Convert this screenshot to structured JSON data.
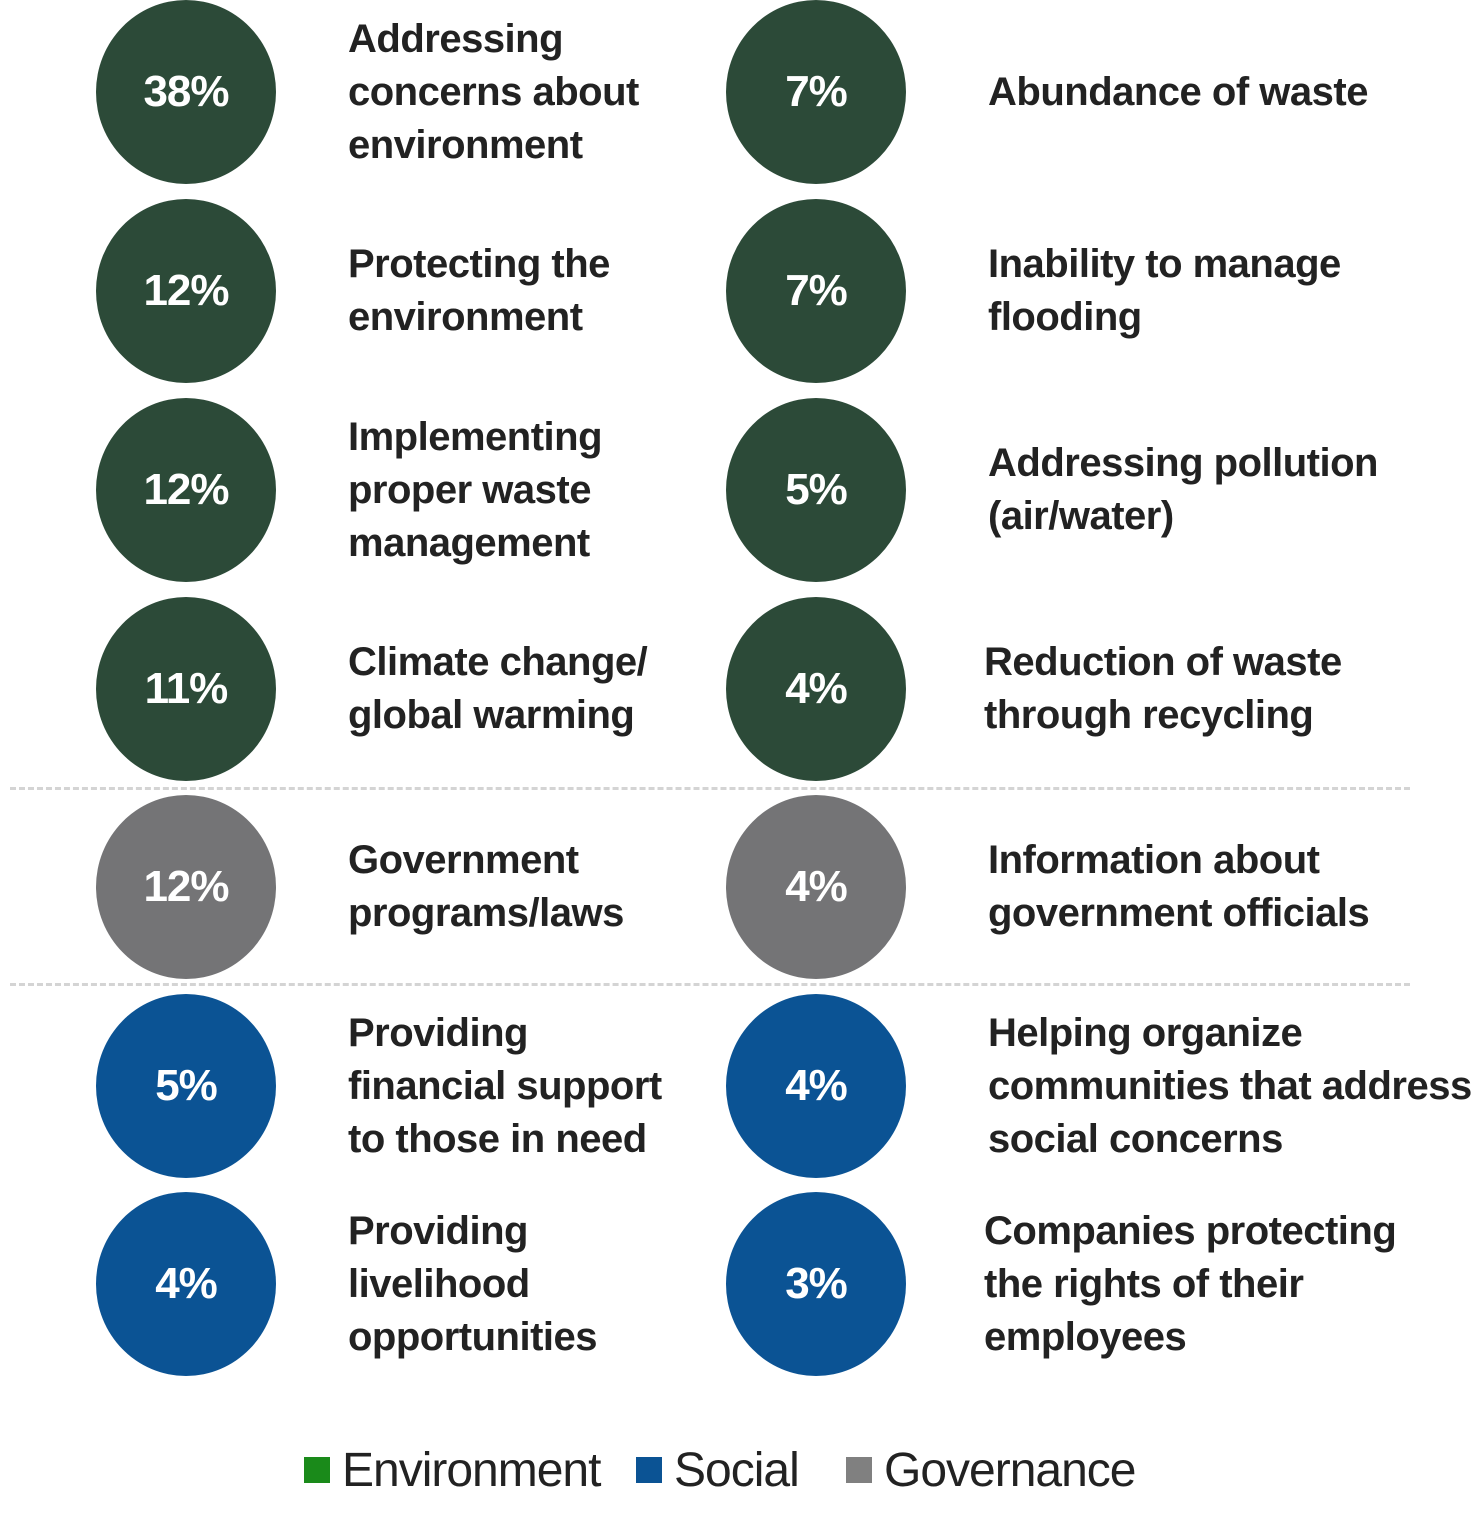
{
  "chart_data": {
    "type": "bubble-list",
    "colors": {
      "environment_bubble": "#2c4a38",
      "governance_bubble": "#747476",
      "social_bubble": "#0b5394",
      "environment_legend": "#1a8a1a",
      "social_legend": "#0b5394",
      "governance_legend": "#808080"
    },
    "legend": [
      {
        "label": "Environment",
        "category": "environment"
      },
      {
        "label": "Social",
        "category": "social"
      },
      {
        "label": "Governance",
        "category": "governance"
      }
    ],
    "items": [
      {
        "value": "38%",
        "label": "Addressing\nconcerns about\nenvironment",
        "category": "environment",
        "column": 0,
        "row": 0
      },
      {
        "value": "7%",
        "label": "Abundance of waste",
        "category": "environment",
        "column": 1,
        "row": 0
      },
      {
        "value": "12%",
        "label": "Protecting the\nenvironment",
        "category": "environment",
        "column": 0,
        "row": 1
      },
      {
        "value": "7%",
        "label": "Inability to manage\nflooding",
        "category": "environment",
        "column": 1,
        "row": 1
      },
      {
        "value": "12%",
        "label": "Implementing\nproper waste\nmanagement",
        "category": "environment",
        "column": 0,
        "row": 2
      },
      {
        "value": "5%",
        "label": "Addressing pollution\n(air/water)",
        "category": "environment",
        "column": 1,
        "row": 2
      },
      {
        "value": "11%",
        "label": "Climate change/\nglobal warming",
        "category": "environment",
        "column": 0,
        "row": 3
      },
      {
        "value": "4%",
        "label": "Reduction of waste\nthrough recycling",
        "category": "environment",
        "column": 1,
        "row": 3
      },
      {
        "value": "12%",
        "label": "Government\nprograms/laws",
        "category": "governance",
        "column": 0,
        "row": 4
      },
      {
        "value": "4%",
        "label": "Information about\ngovernment officials",
        "category": "governance",
        "column": 1,
        "row": 4
      },
      {
        "value": "5%",
        "label": "Providing\nfinancial support\nto those in need",
        "category": "social",
        "column": 0,
        "row": 5
      },
      {
        "value": "4%",
        "label": "Helping organize\ncommunities that address\nsocial concerns",
        "category": "social",
        "column": 1,
        "row": 5
      },
      {
        "value": "4%",
        "label": "Providing\nlivelihood\nopportunities",
        "category": "social",
        "column": 0,
        "row": 6
      },
      {
        "value": "3%",
        "label": "Companies protecting\nthe rights of their\nemployees",
        "category": "social",
        "column": 1,
        "row": 6
      }
    ],
    "dividers_after_rows": [
      3,
      4
    ]
  }
}
